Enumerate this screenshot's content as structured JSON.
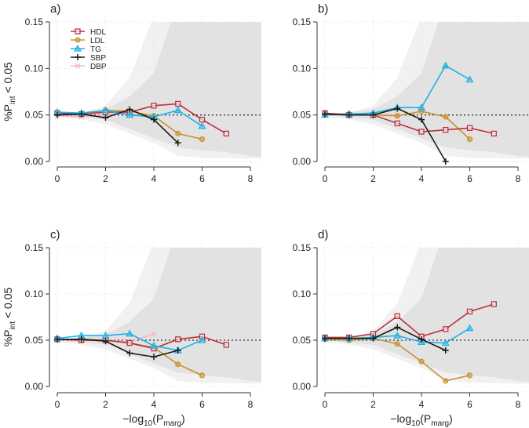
{
  "chart_data": [
    {
      "type": "line",
      "panel_label": "a)",
      "ylabel": "%P",
      "ylabel_sub": "int",
      "ylabel_tail": " < 0.05",
      "xlabel": "",
      "xlim": [
        0,
        8
      ],
      "ylim": [
        0,
        0.15
      ],
      "x_ticks": [
        "0",
        "2",
        "4",
        "6",
        "8"
      ],
      "y_ticks": [
        "0.00",
        "0.05",
        "0.10",
        "0.15"
      ],
      "reference_line": 0.05,
      "legend": {
        "placement": "top-left",
        "entries": [
          "HDL",
          "LDL",
          "TG",
          "SBP",
          "DBP"
        ]
      },
      "series": [
        {
          "name": "HDL",
          "x": [
            0,
            1,
            2,
            3,
            4,
            5,
            6,
            7
          ],
          "values": [
            0.052,
            0.051,
            0.053,
            0.053,
            0.06,
            0.062,
            0.045,
            0.03
          ]
        },
        {
          "name": "LDL",
          "x": [
            0,
            1,
            2,
            3,
            4,
            5,
            6
          ],
          "values": [
            0.052,
            0.051,
            0.055,
            0.054,
            0.049,
            0.03,
            0.024
          ]
        },
        {
          "name": "TG",
          "x": [
            0,
            1,
            2,
            3,
            4,
            5,
            6
          ],
          "values": [
            0.053,
            0.052,
            0.055,
            0.05,
            0.048,
            0.055,
            0.038
          ]
        },
        {
          "name": "SBP",
          "x": [
            0,
            1,
            2,
            3,
            4,
            5
          ],
          "values": [
            0.05,
            0.051,
            0.047,
            0.056,
            0.045,
            0.02
          ]
        },
        {
          "name": "DBP",
          "x": [
            0,
            1,
            2,
            3
          ],
          "values": [
            0.049,
            0.048,
            0.05,
            0.053
          ]
        }
      ]
    },
    {
      "type": "line",
      "panel_label": "b)",
      "ylabel": "",
      "xlabel": "",
      "xlim": [
        0,
        8
      ],
      "ylim": [
        0,
        0.15
      ],
      "x_ticks": [
        "0",
        "2",
        "4",
        "6",
        "8"
      ],
      "y_ticks": [
        "0.00",
        "0.05",
        "0.10",
        "0.15"
      ],
      "reference_line": 0.05,
      "series": [
        {
          "name": "HDL",
          "x": [
            0,
            1,
            2,
            3,
            4,
            5,
            6,
            7
          ],
          "values": [
            0.052,
            0.05,
            0.05,
            0.041,
            0.032,
            0.034,
            0.036,
            0.03
          ]
        },
        {
          "name": "LDL",
          "x": [
            0,
            1,
            2,
            3,
            4,
            5,
            6
          ],
          "values": [
            0.051,
            0.051,
            0.05,
            0.049,
            0.054,
            0.048,
            0.024
          ]
        },
        {
          "name": "TG",
          "x": [
            0,
            1,
            2,
            3,
            4,
            5,
            6
          ],
          "values": [
            0.05,
            0.051,
            0.052,
            0.058,
            0.058,
            0.103,
            0.088
          ]
        },
        {
          "name": "SBP",
          "x": [
            0,
            1,
            2,
            3,
            4,
            5
          ],
          "values": [
            0.051,
            0.05,
            0.05,
            0.057,
            0.045,
            0.0
          ]
        },
        {
          "name": "DBP",
          "x": [
            0,
            1,
            2,
            3
          ],
          "values": [
            0.05,
            0.05,
            0.05,
            0.05
          ]
        }
      ]
    },
    {
      "type": "line",
      "panel_label": "c)",
      "ylabel": "%P",
      "ylabel_sub": "int",
      "ylabel_tail": " < 0.05",
      "xlabel": "−log",
      "xlabel_sub": "10",
      "xlabel_mid": "(P",
      "xlabel_sub2": "marg",
      "xlabel_tail": ")",
      "xlim": [
        0,
        8
      ],
      "ylim": [
        0,
        0.15
      ],
      "x_ticks": [
        "0",
        "2",
        "4",
        "6",
        "8"
      ],
      "y_ticks": [
        "0.00",
        "0.05",
        "0.10",
        "0.15"
      ],
      "reference_line": 0.05,
      "series": [
        {
          "name": "HDL",
          "x": [
            0,
            1,
            2,
            3,
            4,
            5,
            6,
            7
          ],
          "values": [
            0.051,
            0.05,
            0.05,
            0.047,
            0.041,
            0.051,
            0.054,
            0.045
          ]
        },
        {
          "name": "LDL",
          "x": [
            0,
            1,
            2,
            3,
            4,
            5,
            6
          ],
          "values": [
            0.051,
            0.051,
            0.05,
            0.047,
            0.042,
            0.024,
            0.012
          ]
        },
        {
          "name": "TG",
          "x": [
            0,
            1,
            2,
            3,
            4,
            5,
            6
          ],
          "values": [
            0.052,
            0.055,
            0.055,
            0.057,
            0.044,
            0.039,
            0.05
          ]
        },
        {
          "name": "SBP",
          "x": [
            0,
            1,
            2,
            3,
            4,
            5
          ],
          "values": [
            0.051,
            0.051,
            0.049,
            0.036,
            0.032,
            0.039
          ]
        },
        {
          "name": "DBP",
          "x": [
            0,
            1,
            2,
            3,
            4
          ],
          "values": [
            0.051,
            0.051,
            0.05,
            0.048,
            0.057
          ]
        }
      ]
    },
    {
      "type": "line",
      "panel_label": "d)",
      "ylabel": "",
      "xlabel": "−log",
      "xlabel_sub": "10",
      "xlabel_mid": "(P",
      "xlabel_sub2": "marg",
      "xlabel_tail": ")",
      "xlim": [
        0,
        8
      ],
      "ylim": [
        0,
        0.15
      ],
      "x_ticks": [
        "0",
        "2",
        "4",
        "6",
        "8"
      ],
      "y_ticks": [
        "0.00",
        "0.05",
        "0.10",
        "0.15"
      ],
      "reference_line": 0.05,
      "series": [
        {
          "name": "HDL",
          "x": [
            0,
            1,
            2,
            3,
            4,
            5,
            6,
            7
          ],
          "values": [
            0.053,
            0.053,
            0.057,
            0.076,
            0.054,
            0.062,
            0.081,
            0.089
          ]
        },
        {
          "name": "LDL",
          "x": [
            0,
            1,
            2,
            3,
            4,
            5,
            6
          ],
          "values": [
            0.051,
            0.05,
            0.052,
            0.046,
            0.027,
            0.006,
            0.012
          ]
        },
        {
          "name": "TG",
          "x": [
            0,
            1,
            2,
            3,
            4,
            5,
            6
          ],
          "values": [
            0.052,
            0.052,
            0.053,
            0.055,
            0.048,
            0.047,
            0.063
          ]
        },
        {
          "name": "SBP",
          "x": [
            0,
            1,
            2,
            3,
            4,
            5
          ],
          "values": [
            0.052,
            0.052,
            0.052,
            0.064,
            0.051,
            0.039
          ]
        },
        {
          "name": "DBP",
          "x": [
            0,
            1,
            2
          ],
          "values": [
            0.051,
            0.051,
            0.052
          ]
        }
      ]
    }
  ],
  "null_bands": {
    "outer": {
      "x": [
        0,
        1,
        2,
        3,
        3.9,
        8.5
      ],
      "upper": [
        0.05,
        0.052,
        0.06,
        0.09,
        0.15,
        0.15
      ],
      "x_lower": [
        0,
        1,
        2,
        3,
        4,
        5,
        6,
        8.5
      ],
      "lower": [
        0.048,
        0.045,
        0.04,
        0.03,
        0.02,
        0.006,
        0.004,
        0.003
      ]
    },
    "inner": {
      "x": [
        0,
        2,
        3,
        4,
        4.7,
        8.5
      ],
      "upper": [
        0.05,
        0.056,
        0.07,
        0.095,
        0.15,
        0.15
      ],
      "x_lower": [
        0,
        2,
        3,
        4,
        5,
        6,
        7,
        8,
        8.5
      ],
      "lower": [
        0.05,
        0.045,
        0.035,
        0.025,
        0.015,
        0.012,
        0.01,
        0.006,
        0.005
      ]
    }
  },
  "colors": {
    "HDL": "#b8323f",
    "LDL": "#c9922e",
    "TG": "#1fb2e8",
    "SBP": "#1a1a1a",
    "DBP": "#f2b8c2",
    "band_outer": "#f1f1f1",
    "band_inner": "#e2e2e2",
    "grid": "#dddddd"
  }
}
